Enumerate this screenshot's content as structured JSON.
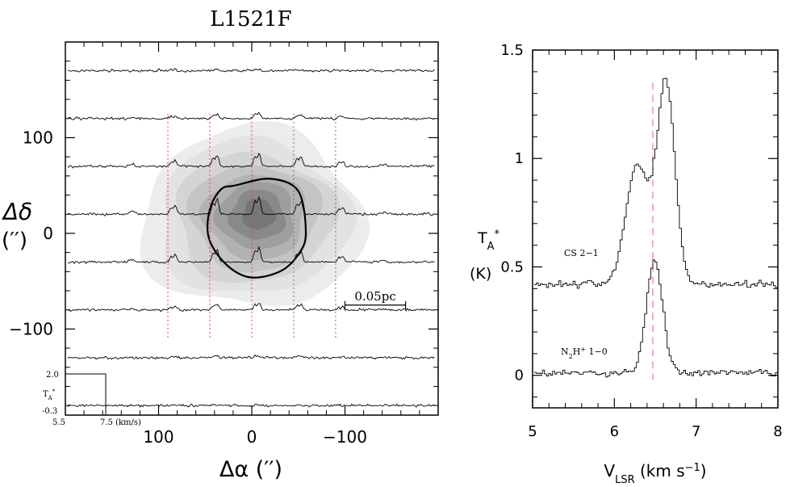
{
  "chart_data": [
    {
      "type": "line",
      "panel": "left",
      "title": "L1521F",
      "xlabel": "Δα (′′)",
      "ylabel_top": "Δδ",
      "ylabel_bottom": "(′′)",
      "xlim": [
        200,
        -200
      ],
      "ylim": [
        -190,
        200
      ],
      "xticks": [
        {
          "value": 100,
          "label": "100"
        },
        {
          "value": 0,
          "label": "0"
        },
        {
          "value": -100,
          "label": "−100"
        }
      ],
      "yticks": [
        {
          "value": 100,
          "label": "100"
        },
        {
          "value": 0,
          "label": "0"
        },
        {
          "value": -100,
          "label": "−100"
        }
      ],
      "spectra_offsets": [
        170,
        120,
        70,
        20,
        -30,
        -80,
        -130,
        -180
      ],
      "red_lines_x": [
        90,
        45,
        0,
        -45,
        -90
      ],
      "scale_bar": {
        "label": "0.05pc",
        "from": -100,
        "to": -165,
        "y": -75
      },
      "inset": {
        "y_top": "2.0",
        "y_label": "TA*",
        "y_bottom": "-0.3",
        "x_left": "5.5",
        "x_right": "7.5 (km/s)"
      }
    },
    {
      "type": "line",
      "panel": "right",
      "xlabel": "VLSR (km s−1)",
      "ylabel": "TA*",
      "ylabel_unit": "(K)",
      "xlim": [
        5,
        8
      ],
      "ylim": [
        -0.15,
        1.5
      ],
      "xticks": [
        "5",
        "6",
        "7",
        "8"
      ],
      "yticks": [
        {
          "value": 0,
          "label": "0"
        },
        {
          "value": 0.5,
          "label": "0.5"
        },
        {
          "value": 1,
          "label": "1"
        },
        {
          "value": 1.5,
          "label": "1.5"
        }
      ],
      "vline": 6.47,
      "series": [
        {
          "name": "CS 2−1",
          "baseline": 0.42,
          "gaussians": [
            [
              0.92,
              6.62,
              0.11
            ],
            [
              0.55,
              6.27,
              0.14
            ]
          ]
        },
        {
          "name": "N2H+ 1−0",
          "baseline": 0.01,
          "gaussians": [
            [
              0.52,
              6.48,
              0.1
            ]
          ]
        }
      ]
    }
  ]
}
